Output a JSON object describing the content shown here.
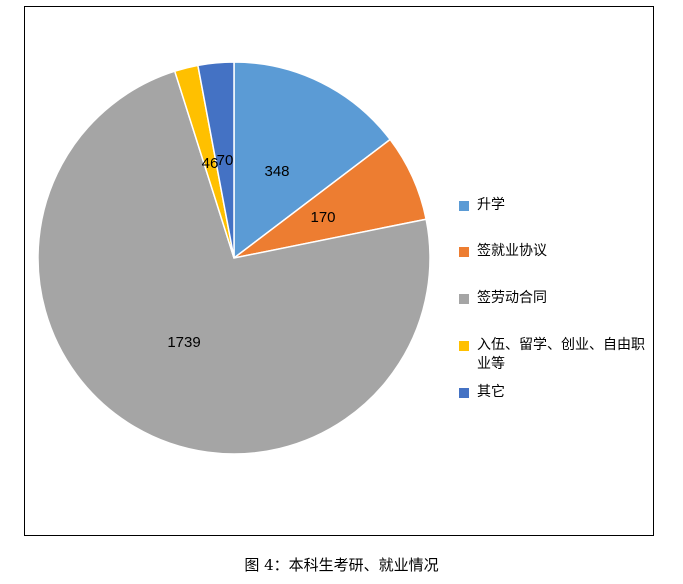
{
  "chart_data": {
    "type": "pie",
    "title": "",
    "categories": [
      "升学",
      "签就业协议",
      "签劳动合同",
      "入伍、留学、创业、自由职业等",
      "其它"
    ],
    "values": [
      348,
      170,
      1739,
      46,
      70
    ],
    "colors": [
      "#5B9BD5",
      "#ED7D31",
      "#A5A5A5",
      "#FFC000",
      "#4472C4"
    ],
    "start_angle_deg": 90,
    "direction": "clockwise",
    "legend_position": "right"
  },
  "legend": {
    "items": [
      {
        "label": "升学",
        "color": "#5B9BD5"
      },
      {
        "label": "签就业协议",
        "color": "#ED7D31"
      },
      {
        "label": "签劳动合同",
        "color": "#A5A5A5"
      },
      {
        "label": "入伍、留学、创业、自由职业等",
        "color": "#FFC000"
      },
      {
        "label": "其它",
        "color": "#4472C4"
      }
    ]
  },
  "caption": "图 4：本科生考研、就业情况"
}
